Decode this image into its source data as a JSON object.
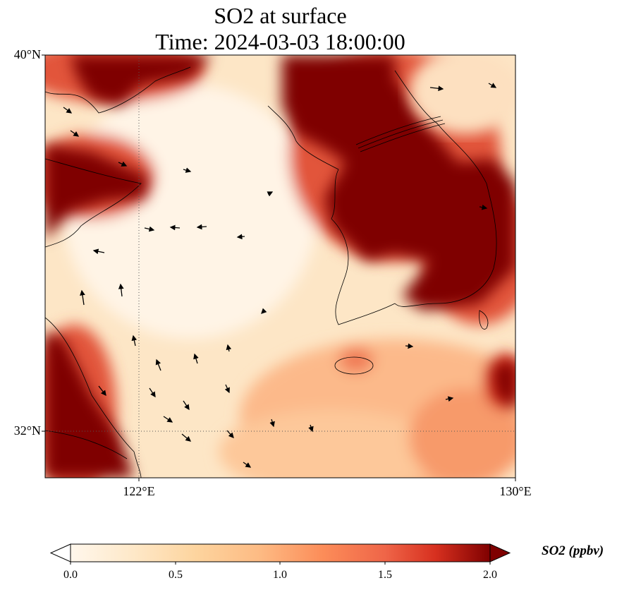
{
  "title": {
    "line1": "SO2 at surface",
    "line2": "Time: 2024-03-03 18:00:00"
  },
  "axes": {
    "lat_ticks": [
      "40°N",
      "32°N"
    ],
    "lon_ticks": [
      "122°E",
      "130°E"
    ]
  },
  "colorbar": {
    "label": "SO2 (ppbv)",
    "ticks": [
      "0.0",
      "0.5",
      "1.0",
      "1.5",
      "2.0"
    ],
    "colormap": "OrRd",
    "range": [
      0,
      2
    ],
    "extend": "both"
  },
  "map": {
    "lon_range": [
      120,
      130
    ],
    "lat_range": [
      31,
      40
    ],
    "gridlines": "dotted at 122°E and 32°N",
    "high_so2_regions": [
      "northwest coast (top-left)",
      "Korean peninsula west",
      "northeast corner",
      "southwest coast (bottom-left)"
    ]
  }
}
